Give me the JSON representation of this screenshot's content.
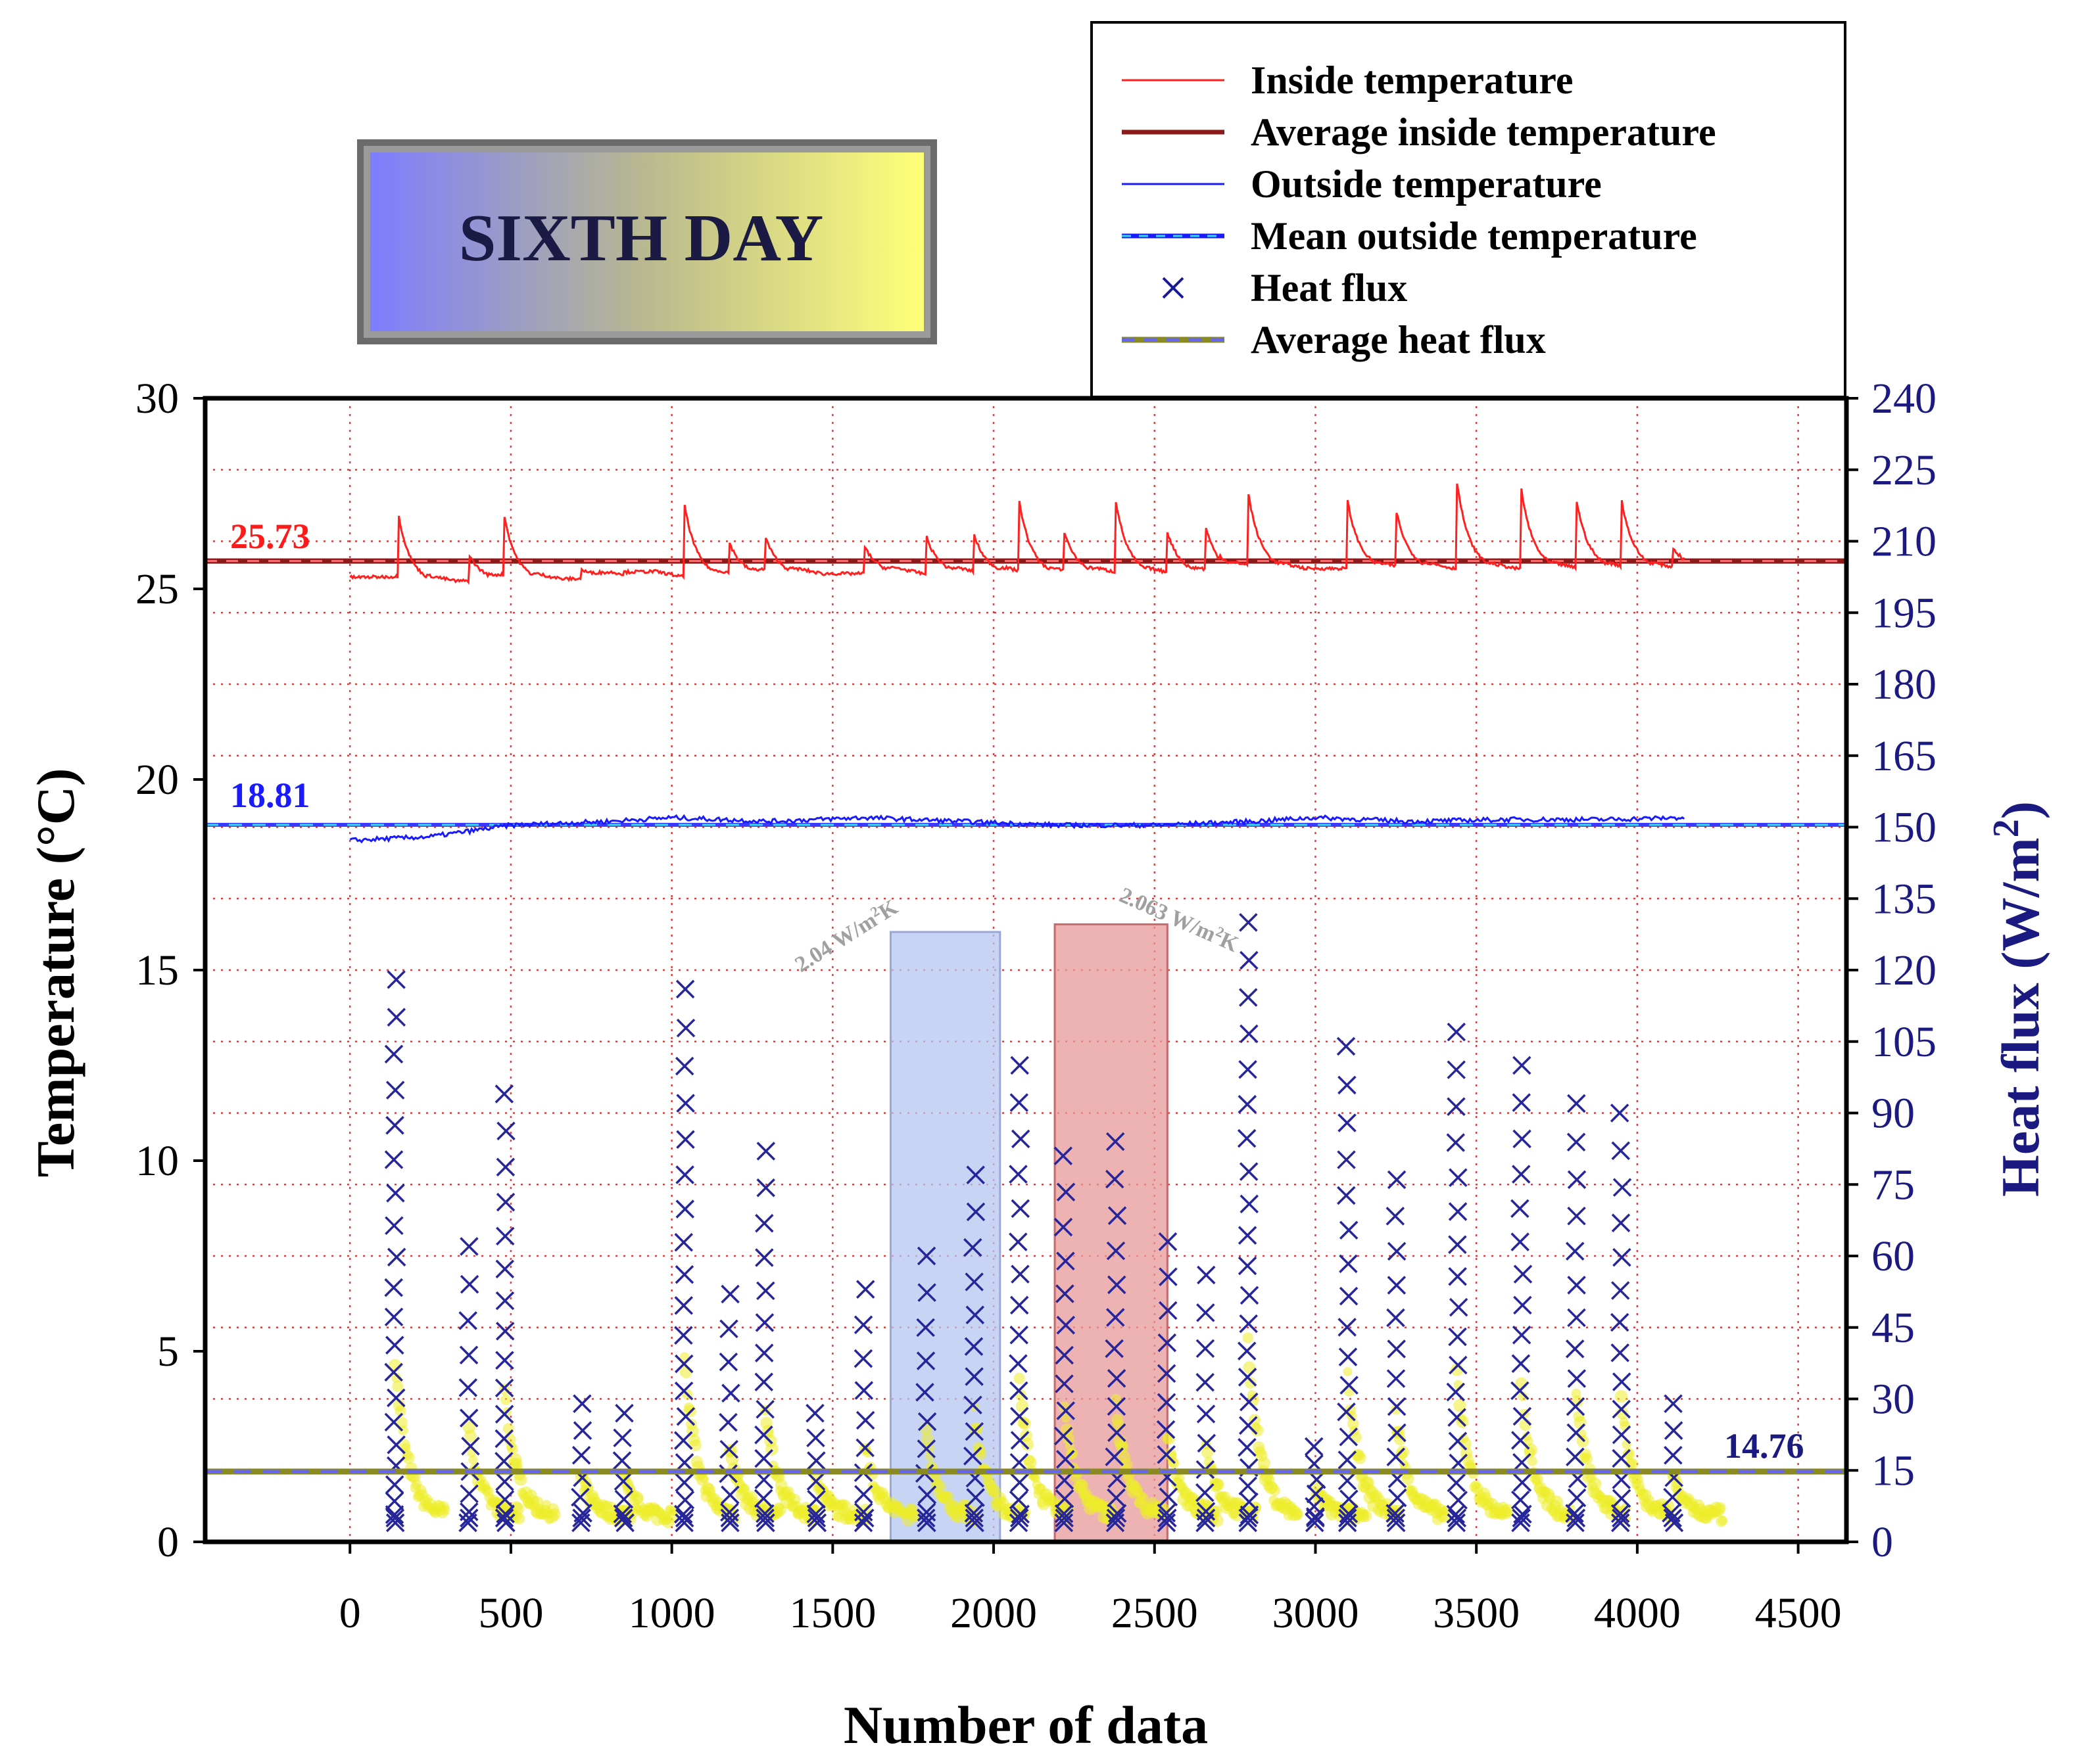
{
  "chart_data": {
    "type": "line",
    "title": "SIXTH DAY",
    "xlabel": "Number of data",
    "ylabel_left": "Temperature (°C)",
    "ylabel_right": "Heat flux (W/m2)",
    "xlim": [
      -450,
      4650
    ],
    "ylim_left": [
      0,
      30
    ],
    "ylim_right": [
      0,
      240
    ],
    "x_ticks": [
      "0",
      "500",
      "1000",
      "1500",
      "2000",
      "2500",
      "3000",
      "3500",
      "4000",
      "4500"
    ],
    "y_left_ticks": [
      "0",
      "5",
      "10",
      "15",
      "20",
      "25",
      "30"
    ],
    "y_right_ticks": [
      "0",
      "15",
      "30",
      "45",
      "60",
      "75",
      "90",
      "105",
      "120",
      "135",
      "150",
      "165",
      "180",
      "195",
      "210",
      "225",
      "240"
    ],
    "grid": true,
    "legend": [
      {
        "label": "Inside temperature",
        "color": "#ff2020",
        "style": "line"
      },
      {
        "label": "Average inside temperature",
        "color": "#8b1a1a",
        "style": "thick-line"
      },
      {
        "label": "Outside temperature",
        "color": "#1a1aff",
        "style": "line"
      },
      {
        "label": "Mean outside temperature",
        "color": "#1a1aff",
        "style": "dash-cyan"
      },
      {
        "label": "Heat flux",
        "color": "#1a1a99",
        "style": "x-marker"
      },
      {
        "label": "Average heat flux",
        "color": "#8a8a22",
        "style": "dash-blue"
      }
    ],
    "legend_position": "top-right",
    "annotations": {
      "avg_inside_label": "25.73",
      "mean_outside_label": "18.81",
      "avg_flux_label": "14.76",
      "u_value_left": "2.04 W/m",
      "u_value_right": "2.063 W/m",
      "u_value_exp": "2",
      "u_value_unit_tail": "K"
    },
    "series": [
      {
        "name": "Inside temperature",
        "axis": "left",
        "baseline": 25.55,
        "start": 25.3,
        "end": 26.0,
        "peaks": [
          [
            150,
            27.0
          ],
          [
            370,
            25.9
          ],
          [
            480,
            26.9
          ],
          [
            720,
            25.5
          ],
          [
            850,
            25.4
          ],
          [
            1040,
            27.2
          ],
          [
            1180,
            26.2
          ],
          [
            1290,
            26.4
          ],
          [
            1600,
            26.1
          ],
          [
            1790,
            26.4
          ],
          [
            1940,
            26.4
          ],
          [
            2080,
            27.3
          ],
          [
            2220,
            26.5
          ],
          [
            2380,
            27.3
          ],
          [
            2540,
            26.5
          ],
          [
            2660,
            26.6
          ],
          [
            2790,
            27.6
          ],
          [
            3100,
            27.3
          ],
          [
            3250,
            27.1
          ],
          [
            3440,
            27.8
          ],
          [
            3640,
            27.6
          ],
          [
            3810,
            27.4
          ],
          [
            3950,
            27.4
          ],
          [
            4110,
            26.1
          ]
        ]
      },
      {
        "name": "Average inside temperature",
        "axis": "left",
        "value": 25.73
      },
      {
        "name": "Outside temperature",
        "axis": "left",
        "points": [
          [
            0,
            18.4
          ],
          [
            250,
            18.5
          ],
          [
            500,
            18.8
          ],
          [
            800,
            18.9
          ],
          [
            1000,
            19.0
          ],
          [
            1300,
            18.9
          ],
          [
            1600,
            19.0
          ],
          [
            1900,
            18.9
          ],
          [
            2200,
            18.8
          ],
          [
            2500,
            18.8
          ],
          [
            2800,
            18.9
          ],
          [
            3000,
            19.0
          ],
          [
            3300,
            18.9
          ],
          [
            3600,
            18.95
          ],
          [
            3900,
            18.95
          ],
          [
            4150,
            19.0
          ]
        ]
      },
      {
        "name": "Mean outside temperature",
        "axis": "left",
        "value": 18.81
      },
      {
        "name": "Heat flux",
        "axis": "right",
        "bursts": [
          [
            140,
            118
          ],
          [
            370,
            62
          ],
          [
            480,
            94
          ],
          [
            720,
            29
          ],
          [
            850,
            27
          ],
          [
            1040,
            116
          ],
          [
            1180,
            52
          ],
          [
            1290,
            82
          ],
          [
            1450,
            27
          ],
          [
            1600,
            53
          ],
          [
            1790,
            60
          ],
          [
            1940,
            77
          ],
          [
            2080,
            100
          ],
          [
            2220,
            81
          ],
          [
            2380,
            84
          ],
          [
            2540,
            63
          ],
          [
            2660,
            56
          ],
          [
            2790,
            130
          ],
          [
            3000,
            20
          ],
          [
            3100,
            104
          ],
          [
            3250,
            76
          ],
          [
            3440,
            107
          ],
          [
            3640,
            100
          ],
          [
            3810,
            92
          ],
          [
            3950,
            90
          ],
          [
            4110,
            29
          ]
        ]
      },
      {
        "name": "Average heat flux",
        "axis": "right",
        "value": 14.76
      }
    ],
    "highlights": [
      {
        "x_start": 1680,
        "x_end": 2020,
        "y_min": 0,
        "y_max": 16,
        "color": "#b4c6ef"
      },
      {
        "x_start": 2190,
        "x_end": 2540,
        "y_min": 0,
        "y_max": 16.2,
        "color": "#e79a9a"
      }
    ]
  }
}
